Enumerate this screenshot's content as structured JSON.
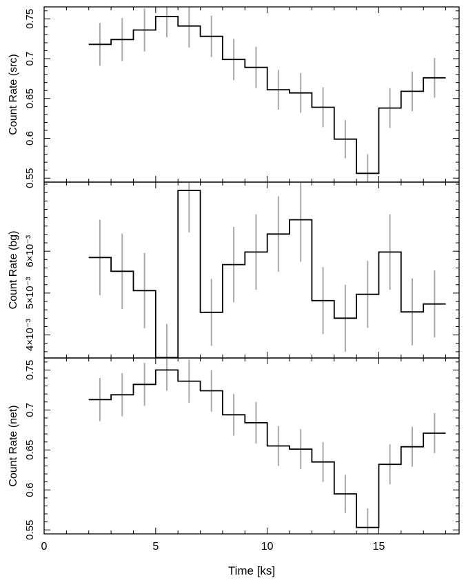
{
  "chart_data": [
    {
      "type": "line",
      "step": true,
      "ylabel": "Count Rate (src)",
      "ylim": [
        0.545,
        0.765
      ],
      "yticks": [
        0.55,
        0.6,
        0.65,
        0.7,
        0.75
      ],
      "ytick_labels": [
        "0.55",
        "0.6",
        "0.65",
        "0.7",
        "0.75"
      ],
      "x": [
        2.5,
        3.5,
        4.5,
        5.5,
        6.5,
        7.5,
        8.5,
        9.5,
        10.5,
        11.5,
        12.5,
        13.5,
        14.5,
        15.5,
        16.5,
        17.5
      ],
      "bin_edges": [
        2.0,
        3.0,
        4.0,
        5.0,
        6.0,
        7.0,
        8.0,
        9.0,
        10.0,
        11.0,
        12.0,
        13.0,
        14.0,
        15.0,
        16.0,
        17.0,
        18.0
      ],
      "values": [
        0.718,
        0.724,
        0.736,
        0.753,
        0.741,
        0.728,
        0.699,
        0.689,
        0.661,
        0.657,
        0.639,
        0.599,
        0.556,
        0.638,
        0.659,
        0.676
      ],
      "errors": [
        0.027,
        0.027,
        0.027,
        0.026,
        0.027,
        0.026,
        0.026,
        0.026,
        0.025,
        0.025,
        0.025,
        0.024,
        0.024,
        0.025,
        0.025,
        0.025
      ]
    },
    {
      "type": "line",
      "step": true,
      "ylabel": "Count Rate (bg)",
      "ylim": [
        0.00345,
        0.00765
      ],
      "yticks": [
        0.004,
        0.005,
        0.006
      ],
      "ytick_labels": [
        "4×10⁻³",
        "5×10⁻³",
        "6×10⁻³"
      ],
      "x": [
        2.5,
        3.5,
        4.5,
        5.5,
        6.5,
        7.5,
        8.5,
        9.5,
        10.5,
        11.5,
        12.5,
        13.5,
        14.5,
        15.5,
        16.5,
        17.5
      ],
      "bin_edges": [
        2.0,
        3.0,
        4.0,
        5.0,
        6.0,
        7.0,
        8.0,
        9.0,
        10.0,
        11.0,
        12.0,
        13.0,
        14.0,
        15.0,
        16.0,
        17.0,
        18.0
      ],
      "values": [
        0.00585,
        0.00552,
        0.00506,
        0.00346,
        0.00745,
        0.00454,
        0.00568,
        0.00598,
        0.00641,
        0.00675,
        0.00482,
        0.0044,
        0.00497,
        0.00598,
        0.00455,
        0.00474
      ],
      "errors": [
        0.0009,
        0.0009,
        0.0009,
        0.0008,
        0.001,
        0.0008,
        0.0009,
        0.0009,
        0.0009,
        0.001,
        0.0008,
        0.0008,
        0.0008,
        0.0009,
        0.0008,
        0.0008
      ]
    },
    {
      "type": "line",
      "step": true,
      "ylabel": "Count Rate (net)",
      "xlabel": "Time [ks]",
      "xlim": [
        0,
        18.6
      ],
      "xticks": [
        0,
        5,
        10,
        15
      ],
      "xtick_labels": [
        "0",
        "5",
        "10",
        "15"
      ],
      "ylim": [
        0.545,
        0.765
      ],
      "yticks": [
        0.55,
        0.6,
        0.65,
        0.7,
        0.75
      ],
      "ytick_labels": [
        "0.55",
        "0.6",
        "0.65",
        "0.7",
        "0.75"
      ],
      "x": [
        2.5,
        3.5,
        4.5,
        5.5,
        6.5,
        7.5,
        8.5,
        9.5,
        10.5,
        11.5,
        12.5,
        13.5,
        14.5,
        15.5,
        16.5,
        17.5
      ],
      "bin_edges": [
        2.0,
        3.0,
        4.0,
        5.0,
        6.0,
        7.0,
        8.0,
        9.0,
        10.0,
        11.0,
        12.0,
        13.0,
        14.0,
        15.0,
        16.0,
        17.0,
        18.0
      ],
      "values": [
        0.713,
        0.719,
        0.732,
        0.75,
        0.736,
        0.724,
        0.694,
        0.684,
        0.655,
        0.651,
        0.635,
        0.595,
        0.553,
        0.632,
        0.654,
        0.671
      ],
      "errors": [
        0.027,
        0.027,
        0.027,
        0.026,
        0.027,
        0.026,
        0.026,
        0.026,
        0.025,
        0.025,
        0.025,
        0.024,
        0.024,
        0.025,
        0.025,
        0.025
      ]
    }
  ],
  "style": {
    "step_color": "#000000",
    "error_color": "#aaaaaa",
    "axis_color": "#000000"
  }
}
